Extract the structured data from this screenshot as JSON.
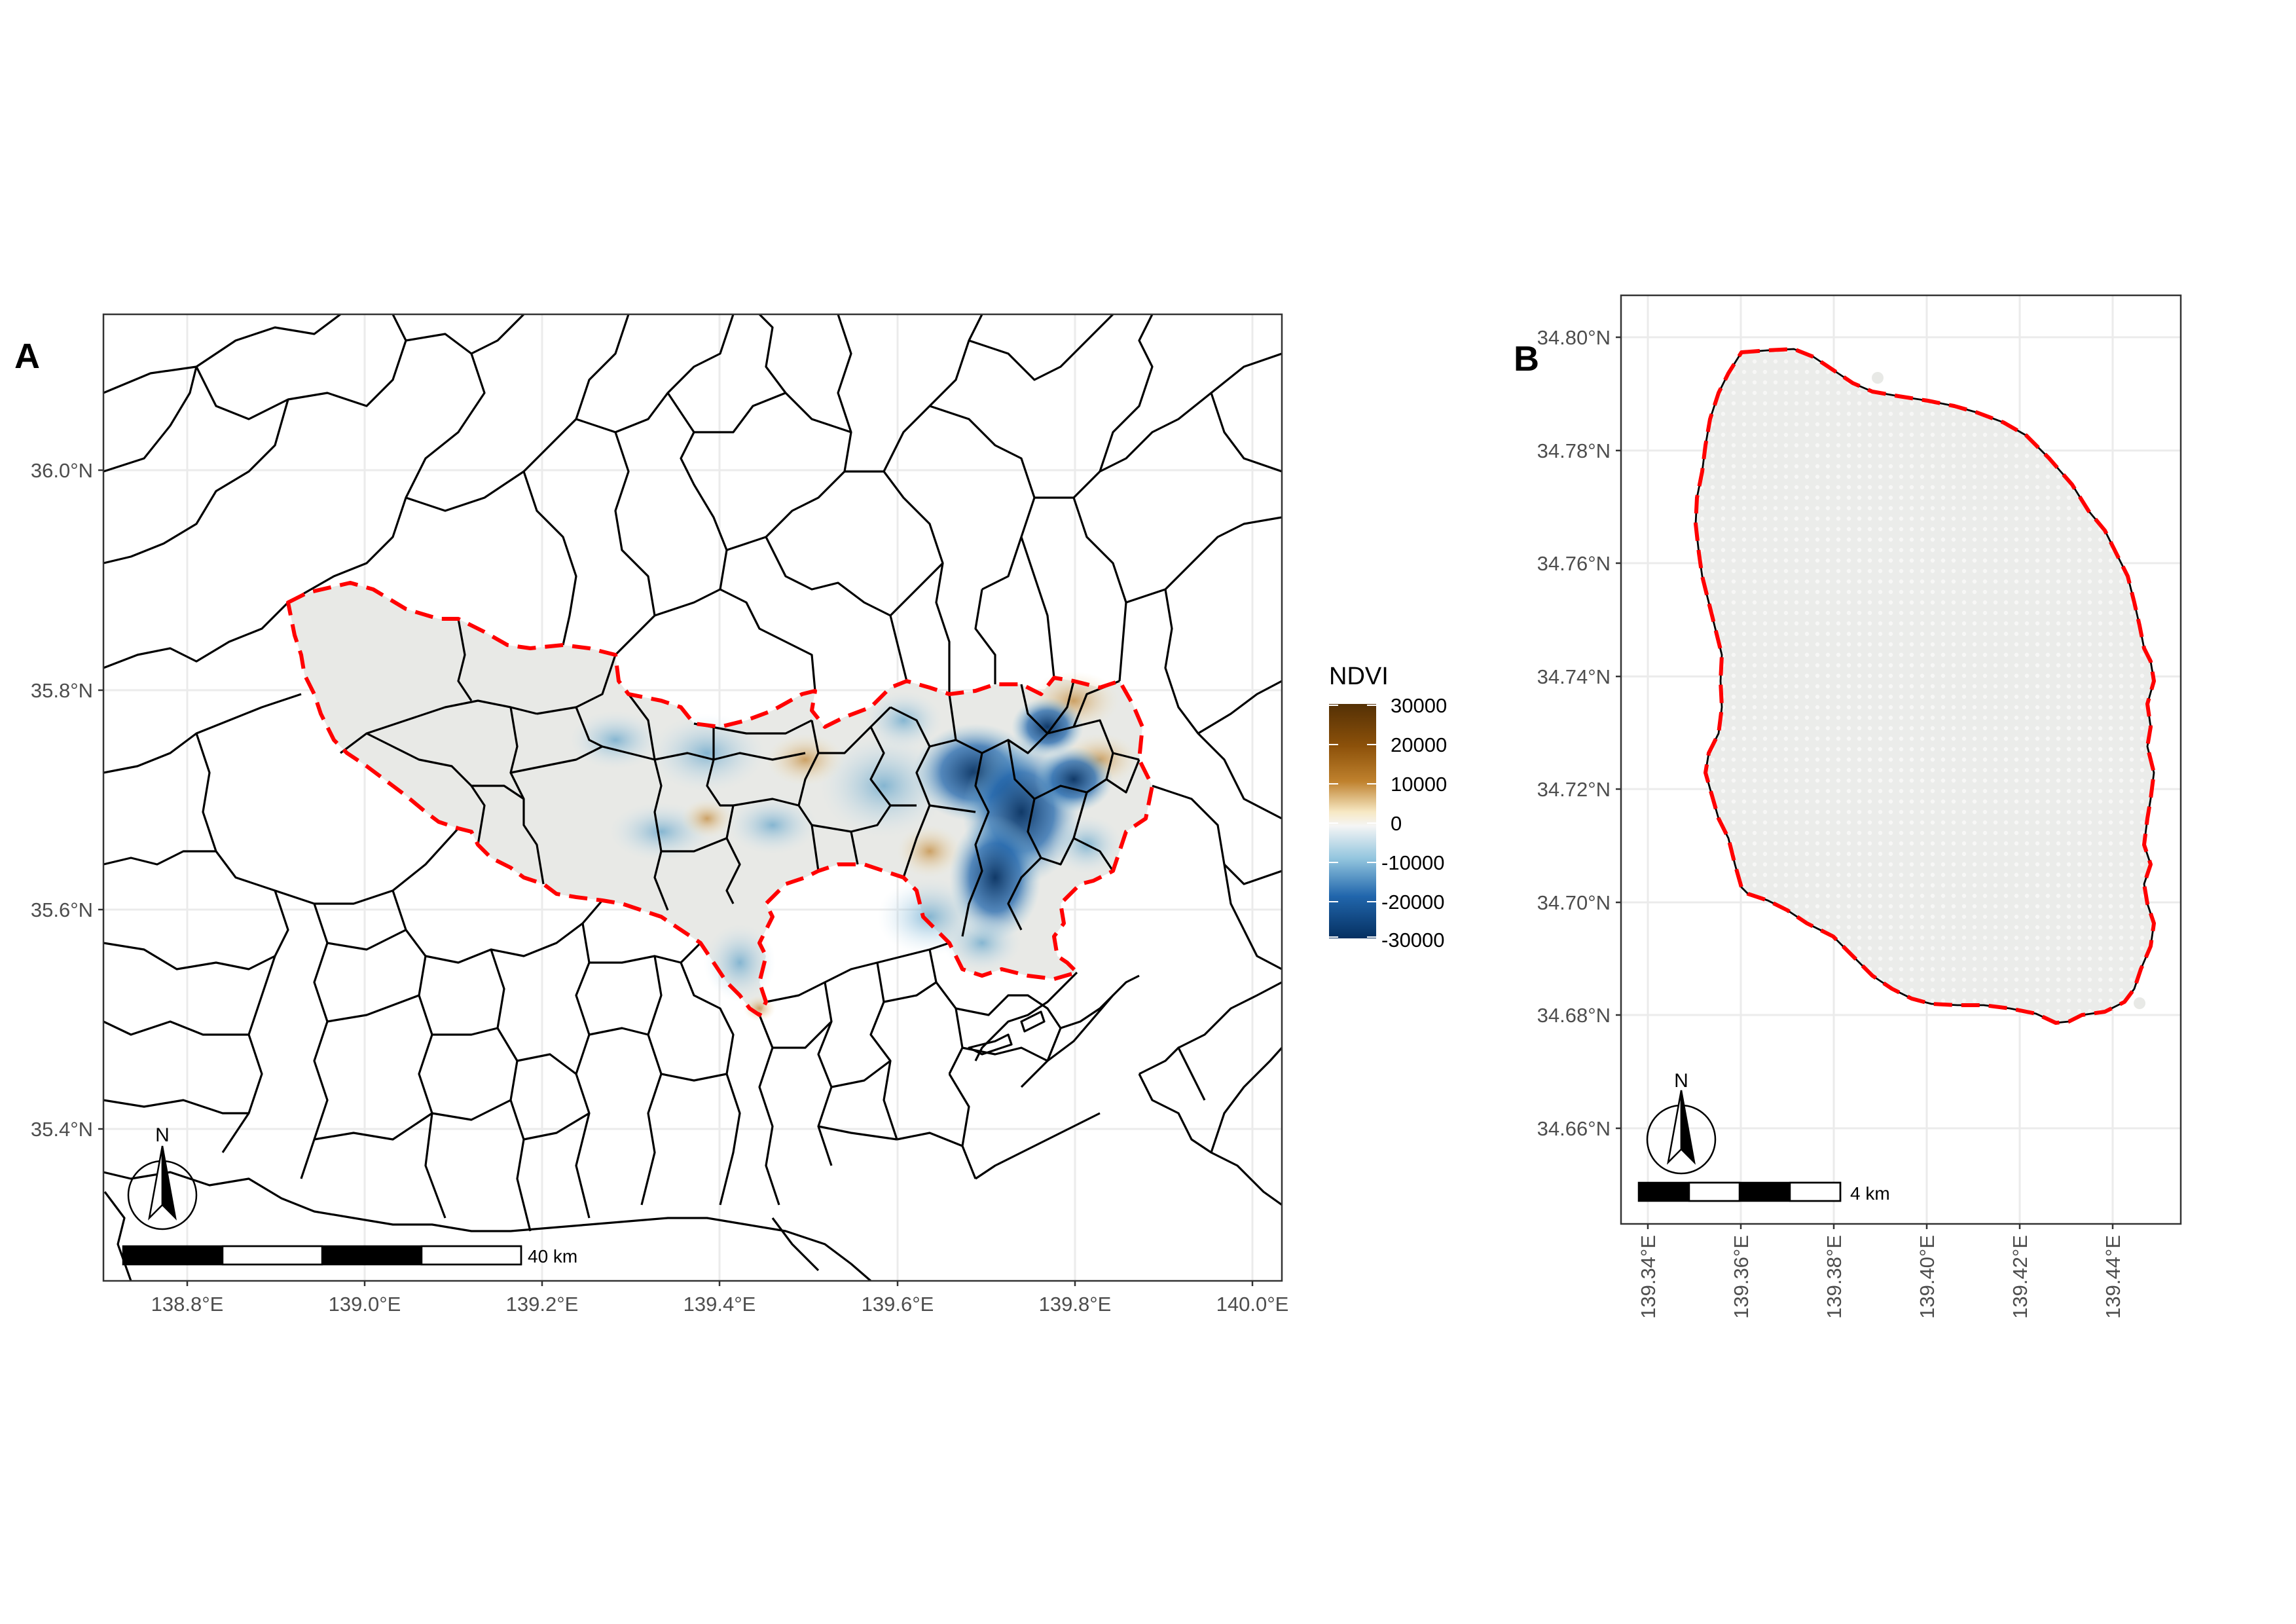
{
  "panelA": {
    "tag": "A",
    "x_ticks": [
      "138.8°E",
      "139.0°E",
      "139.2°E",
      "139.4°E",
      "139.6°E",
      "139.8°E",
      "140.0°E"
    ],
    "y_ticks": [
      "35.4°N",
      "35.6°N",
      "35.8°N",
      "36.0°N"
    ],
    "north_label": "N",
    "scale_label": "40 km",
    "legend": {
      "title": "NDVI",
      "ticks": [
        "30000",
        "20000",
        "10000",
        "0",
        "-10000",
        "-20000",
        "-30000"
      ],
      "colors": [
        "#543005",
        "#8c510a",
        "#bf812d",
        "#f6e8c3",
        "#f5f5f5",
        "#92c5de",
        "#2166ac",
        "#053061"
      ]
    }
  },
  "panelB": {
    "tag": "B",
    "x_ticks": [
      "139.34°E",
      "139.36°E",
      "139.38°E",
      "139.40°E",
      "139.42°E",
      "139.44°E"
    ],
    "y_ticks": [
      "34.66°N",
      "34.68°N",
      "34.70°N",
      "34.72°N",
      "34.74°N",
      "34.76°N",
      "34.78°N",
      "34.80°N"
    ],
    "north_label": "N",
    "scale_label": "4 km"
  },
  "colors": {
    "boundary": "#ff0000",
    "region_fill": "#e8e9e6",
    "admin_lines": "#000000",
    "grid": "#ebebeb"
  }
}
